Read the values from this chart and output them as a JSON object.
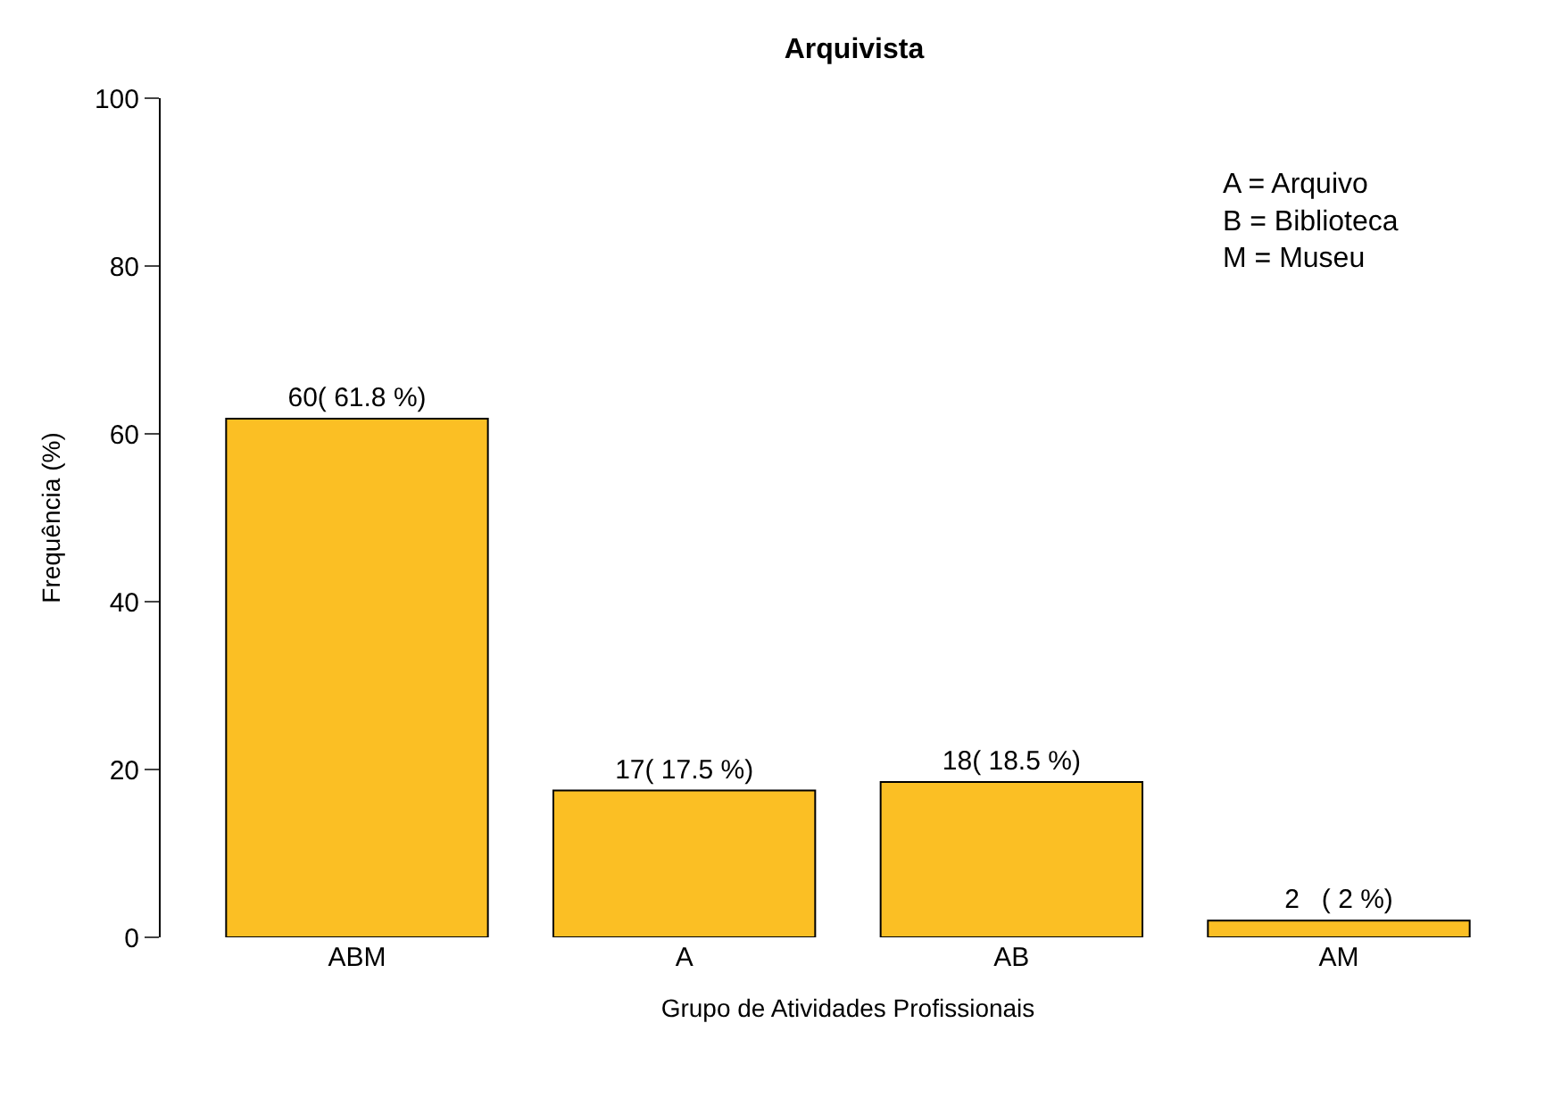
{
  "chart_data": {
    "type": "bar",
    "title": "Arquivista",
    "xlabel": "Grupo de Atividades Profissionais",
    "ylabel": "Frequência (%)",
    "categories": [
      "ABM",
      "A",
      "AB",
      "AM"
    ],
    "values": [
      61.8,
      17.5,
      18.5,
      2
    ],
    "value_labels": [
      "60( 61.8 %)",
      "17( 17.5 %)",
      "18( 18.5 %)",
      "2   ( 2 %)"
    ],
    "color": "#fbbf24",
    "ylim": [
      0,
      100
    ],
    "yticks": [
      0,
      20,
      40,
      60,
      80,
      100
    ],
    "legend": false,
    "annotations": [
      "A = Arquivo\nB = Biblioteca\nM = Museu"
    ]
  }
}
